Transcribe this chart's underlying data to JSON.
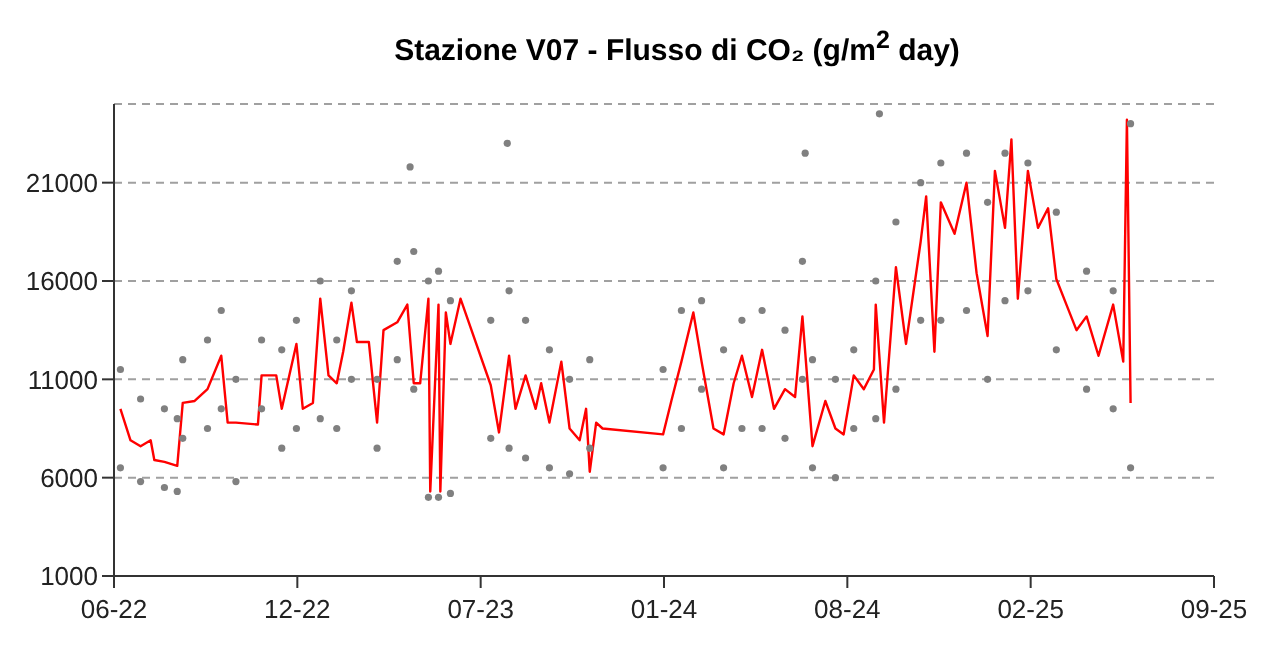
{
  "chart_data": {
    "type": "scatter",
    "title": "Stazione V07 - Flusso di CO₂ (g/m$^{2}$ day)",
    "xlim": [
      "2022-06-01",
      "2025-09-13"
    ],
    "xticks": [
      {
        "value": "2022-06-01",
        "label": "06-22"
      },
      {
        "value": "2022-12-18",
        "label": "12-22"
      },
      {
        "value": "2023-07-06",
        "label": "07-23"
      },
      {
        "value": "2024-01-22",
        "label": "01-24"
      },
      {
        "value": "2024-08-09",
        "label": "08-24"
      },
      {
        "value": "2025-02-25",
        "label": "02-25"
      },
      {
        "value": "2025-09-13",
        "label": "09-25"
      }
    ],
    "ylim": [
      1000,
      25000
    ],
    "yticks": [
      1000,
      6000,
      11000,
      16000,
      21000
    ],
    "grid": "y",
    "series": [
      {
        "marker": "circle",
        "color": "#808080",
        "x": [
          "2022-06-08",
          "2022-06-08",
          "2022-06-30",
          "2022-06-30",
          "2022-07-26",
          "2022-07-26",
          "2022-08-09",
          "2022-08-09",
          "2022-08-15",
          "2022-08-15",
          "2022-09-11",
          "2022-09-11",
          "2022-09-26",
          "2022-09-26",
          "2022-10-12",
          "2022-10-12",
          "2022-11-09",
          "2022-11-09",
          "2022-12-01",
          "2022-12-01",
          "2022-12-17",
          "2022-12-17",
          "2023-01-12",
          "2023-01-12",
          "2023-01-30",
          "2023-01-30",
          "2023-02-15",
          "2023-02-15",
          "2023-03-15",
          "2023-03-15",
          "2023-04-06",
          "2023-04-06",
          "2023-04-20",
          "2023-04-24",
          "2023-04-24",
          "2023-05-10",
          "2023-05-10",
          "2023-05-21",
          "2023-05-21",
          "2023-06-03",
          "2023-06-03",
          "2023-07-17",
          "2023-07-17",
          "2023-08-04",
          "2023-08-06",
          "2023-08-06",
          "2023-08-24",
          "2023-08-24",
          "2023-09-19",
          "2023-09-19",
          "2023-10-11",
          "2023-10-11",
          "2023-11-02",
          "2023-11-02",
          "2024-01-21",
          "2024-01-21",
          "2024-02-10",
          "2024-02-10",
          "2024-03-03",
          "2024-03-03",
          "2024-03-27",
          "2024-03-27",
          "2024-04-16",
          "2024-04-16",
          "2024-05-08",
          "2024-05-08",
          "2024-06-02",
          "2024-06-02",
          "2024-06-21",
          "2024-06-21",
          "2024-06-24",
          "2024-07-02",
          "2024-07-02",
          "2024-07-27",
          "2024-07-27",
          "2024-08-16",
          "2024-08-16",
          "2024-09-09",
          "2024-09-09",
          "2024-09-13",
          "2024-10-01",
          "2024-10-01",
          "2024-10-28",
          "2024-10-28",
          "2024-11-19",
          "2024-11-19",
          "2024-12-17",
          "2024-12-17",
          "2025-01-09",
          "2025-01-09",
          "2025-01-28",
          "2025-01-28",
          "2025-02-22",
          "2025-02-22",
          "2025-03-25",
          "2025-03-25",
          "2025-04-27",
          "2025-04-27",
          "2025-05-26",
          "2025-05-26",
          "2025-06-14",
          "2025-06-14"
        ],
        "values": [
          11500,
          6500,
          10000,
          5800,
          9500,
          5500,
          9000,
          5300,
          12000,
          8000,
          13000,
          8500,
          14500,
          9500,
          11000,
          5800,
          13000,
          9500,
          12500,
          7500,
          14000,
          8500,
          16000,
          9000,
          13000,
          8500,
          15500,
          11000,
          11000,
          7500,
          17000,
          12000,
          21800,
          17500,
          10500,
          16000,
          5000,
          16500,
          5000,
          15000,
          5200,
          14000,
          8000,
          23000,
          15500,
          7500,
          14000,
          7000,
          12500,
          6500,
          11000,
          6200,
          12000,
          7500,
          11500,
          6500,
          14500,
          8500,
          15000,
          10500,
          12500,
          6500,
          14000,
          8500,
          14500,
          8500,
          13500,
          8000,
          17000,
          11000,
          22500,
          12000,
          6500,
          11000,
          6000,
          12500,
          8500,
          16000,
          9000,
          24500,
          19000,
          10500,
          21000,
          14000,
          22000,
          14000,
          22500,
          14500,
          20000,
          11000,
          22500,
          15000,
          22000,
          15500,
          19500,
          12500,
          16500,
          10500,
          15500,
          9500,
          24000,
          6500
        ]
      },
      {
        "type": "line",
        "marker": "none",
        "line_style": "solid",
        "color": "#ff0000",
        "x": [
          "2022-06-08",
          "2022-06-19",
          "2022-06-30",
          "2022-07-11",
          "2022-07-15",
          "2022-07-26",
          "2022-08-09",
          "2022-08-15",
          "2022-08-28",
          "2022-09-11",
          "2022-09-26",
          "2022-10-03",
          "2022-10-12",
          "2022-11-05",
          "2022-11-09",
          "2022-11-25",
          "2022-12-01",
          "2022-12-17",
          "2022-12-24",
          "2023-01-04",
          "2023-01-12",
          "2023-01-21",
          "2023-01-30",
          "2023-02-06",
          "2023-02-15",
          "2023-02-21",
          "2023-03-06",
          "2023-03-15",
          "2023-03-22",
          "2023-04-06",
          "2023-04-17",
          "2023-04-24",
          "2023-05-01",
          "2023-05-10",
          "2023-05-12",
          "2023-05-21",
          "2023-05-23",
          "2023-05-29",
          "2023-06-03",
          "2023-06-14",
          "2023-07-17",
          "2023-07-26",
          "2023-08-06",
          "2023-08-13",
          "2023-08-24",
          "2023-09-04",
          "2023-09-10",
          "2023-09-19",
          "2023-10-02",
          "2023-10-11",
          "2023-10-22",
          "2023-10-29",
          "2023-11-02",
          "2023-11-09",
          "2023-11-16",
          "2024-01-21",
          "2024-01-30",
          "2024-02-10",
          "2024-02-23",
          "2024-03-03",
          "2024-03-16",
          "2024-03-27",
          "2024-04-07",
          "2024-04-16",
          "2024-04-27",
          "2024-05-08",
          "2024-05-21",
          "2024-06-02",
          "2024-06-13",
          "2024-06-21",
          "2024-07-02",
          "2024-07-16",
          "2024-07-27",
          "2024-08-05",
          "2024-08-16",
          "2024-08-27",
          "2024-09-07",
          "2024-09-09",
          "2024-09-18",
          "2024-10-01",
          "2024-10-12",
          "2024-10-28",
          "2024-11-03",
          "2024-11-12",
          "2024-11-19",
          "2024-12-04",
          "2024-12-17",
          "2024-12-28",
          "2025-01-09",
          "2025-01-17",
          "2025-01-28",
          "2025-02-04",
          "2025-02-11",
          "2025-02-22",
          "2025-03-05",
          "2025-03-16",
          "2025-03-25",
          "2025-04-05",
          "2025-04-16",
          "2025-04-27",
          "2025-05-10",
          "2025-05-26",
          "2025-06-06",
          "2025-06-10",
          "2025-06-14"
        ],
        "values": [
          9500,
          7900,
          7600,
          7900,
          6900,
          6800,
          6600,
          9800,
          9900,
          10500,
          12200,
          8800,
          8800,
          8700,
          11200,
          11200,
          9500,
          12800,
          9500,
          9800,
          15100,
          11200,
          10800,
          12400,
          14900,
          12900,
          12900,
          8800,
          13500,
          13900,
          14800,
          10800,
          10800,
          15100,
          5300,
          14800,
          5300,
          14400,
          12800,
          15100,
          10700,
          8300,
          12200,
          9500,
          11200,
          9500,
          10800,
          8800,
          11900,
          8500,
          7900,
          9500,
          6300,
          8800,
          8500,
          8200,
          9900,
          11900,
          14400,
          11900,
          8500,
          8200,
          10800,
          12200,
          10100,
          12500,
          9500,
          10500,
          10100,
          14200,
          7600,
          9900,
          8500,
          8200,
          11200,
          10500,
          11500,
          14800,
          8800,
          16700,
          12800,
          18000,
          20300,
          12400,
          20000,
          18400,
          21000,
          16400,
          13200,
          21600,
          18700,
          23200,
          15100,
          21600,
          18700,
          19700,
          16100,
          14800,
          13500,
          14200,
          12200,
          14800,
          11900,
          24200,
          9800
        ]
      }
    ]
  }
}
